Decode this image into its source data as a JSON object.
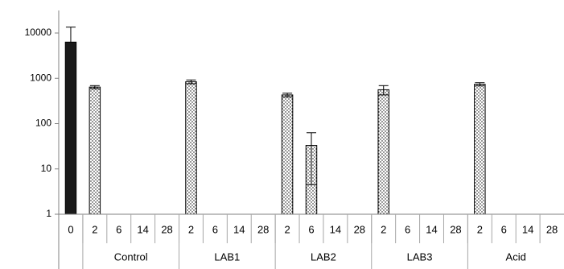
{
  "chart_data": {
    "type": "bar",
    "y_scale": "log",
    "ylim": [
      1,
      10000
    ],
    "y_ticks": [
      {
        "value": 1,
        "label": "1"
      },
      {
        "value": 10,
        "label": "10"
      },
      {
        "value": 100,
        "label": "100"
      },
      {
        "value": 1000,
        "label": "1000"
      },
      {
        "value": 10000,
        "label": "10000"
      }
    ],
    "grid": false,
    "legend": "none",
    "colors": {
      "solid": "#1a1a1a",
      "dotted_fill": "#ffffff",
      "axis": "#808080"
    },
    "categories": [
      {
        "group": "",
        "label": "0",
        "value": 6300,
        "err_up": 7200,
        "err_down": 0,
        "style": "solid"
      },
      {
        "group": "Control",
        "label": "2",
        "value": 640,
        "err_up": 50,
        "err_down": 50,
        "style": "dotted"
      },
      {
        "group": "Control",
        "label": "6",
        "value": null
      },
      {
        "group": "Control",
        "label": "14",
        "value": null
      },
      {
        "group": "Control",
        "label": "28",
        "value": null
      },
      {
        "group": "LAB1",
        "label": "2",
        "value": 840,
        "err_up": 80,
        "err_down": 80,
        "style": "dotted"
      },
      {
        "group": "LAB1",
        "label": "6",
        "value": null
      },
      {
        "group": "LAB1",
        "label": "14",
        "value": null
      },
      {
        "group": "LAB1",
        "label": "28",
        "value": null
      },
      {
        "group": "LAB2",
        "label": "2",
        "value": 430,
        "err_up": 40,
        "err_down": 40,
        "style": "dotted"
      },
      {
        "group": "LAB2",
        "label": "6",
        "value": 33,
        "err_up": 30,
        "err_down": 28.5,
        "style": "dotted"
      },
      {
        "group": "LAB2",
        "label": "14",
        "value": null
      },
      {
        "group": "LAB2",
        "label": "28",
        "value": null
      },
      {
        "group": "LAB3",
        "label": "2",
        "value": 560,
        "err_up": 130,
        "err_down": 130,
        "style": "dotted"
      },
      {
        "group": "LAB3",
        "label": "6",
        "value": null
      },
      {
        "group": "LAB3",
        "label": "14",
        "value": null
      },
      {
        "group": "LAB3",
        "label": "28",
        "value": null
      },
      {
        "group": "Acid",
        "label": "2",
        "value": 740,
        "err_up": 60,
        "err_down": 60,
        "style": "dotted"
      },
      {
        "group": "Acid",
        "label": "6",
        "value": null
      },
      {
        "group": "Acid",
        "label": "14",
        "value": null
      },
      {
        "group": "Acid",
        "label": "28",
        "value": null
      }
    ],
    "groups": [
      "Control",
      "LAB1",
      "LAB2",
      "LAB3",
      "Acid"
    ],
    "title": "",
    "xlabel": "",
    "ylabel": ""
  }
}
